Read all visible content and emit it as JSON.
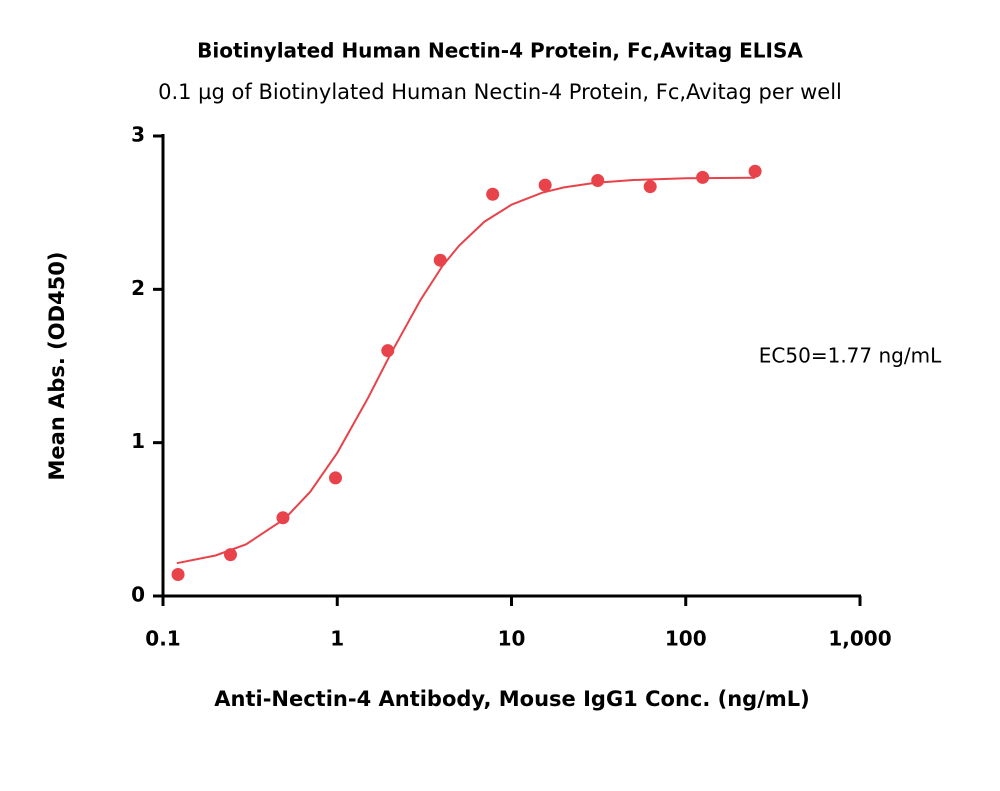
{
  "chart_data": {
    "type": "scatter",
    "title": "Biotinylated Human Nectin-4 Protein, Fc,Avitag ELISA",
    "subtitle": "0.1 µg of Biotinylated Human Nectin-4 Protein, Fc,Avitag per well",
    "x_label": "Anti-Nectin-4 Antibody, Mouse IgG1 Conc. (ng/mL)",
    "y_label": "Mean Abs. (OD450)",
    "annotation": "EC50=1.77 ng/mL",
    "x_scale": "log",
    "xlim": [
      0.1,
      1000
    ],
    "xticks": [
      0.1,
      1,
      10,
      100,
      {
        "value": 1000,
        "label": "1,000"
      }
    ],
    "ylim": [
      0,
      3
    ],
    "yticks": [
      0,
      1,
      2,
      3
    ],
    "grid": false,
    "series": [
      {
        "color": "#e8434a",
        "x": [
          0.122,
          0.244,
          0.488,
          0.977,
          1.95,
          3.9,
          7.8,
          15.6,
          31.25,
          62.5,
          125,
          250
        ],
        "values": [
          0.14,
          0.27,
          0.51,
          0.77,
          1.6,
          2.19,
          2.62,
          2.68,
          2.71,
          2.67,
          2.73,
          2.77
        ]
      }
    ],
    "fit": {
      "color": "#e8434a",
      "x": [
        0.12,
        0.2,
        0.3,
        0.5,
        0.7,
        1,
        1.5,
        2,
        3,
        4,
        5,
        7,
        10,
        15,
        20,
        30,
        50,
        100,
        250
      ],
      "values": [
        0.214,
        0.264,
        0.337,
        0.504,
        0.68,
        0.934,
        1.29,
        1.567,
        1.93,
        2.15,
        2.284,
        2.442,
        2.552,
        2.63,
        2.665,
        2.694,
        2.713,
        2.724,
        2.728
      ]
    }
  }
}
